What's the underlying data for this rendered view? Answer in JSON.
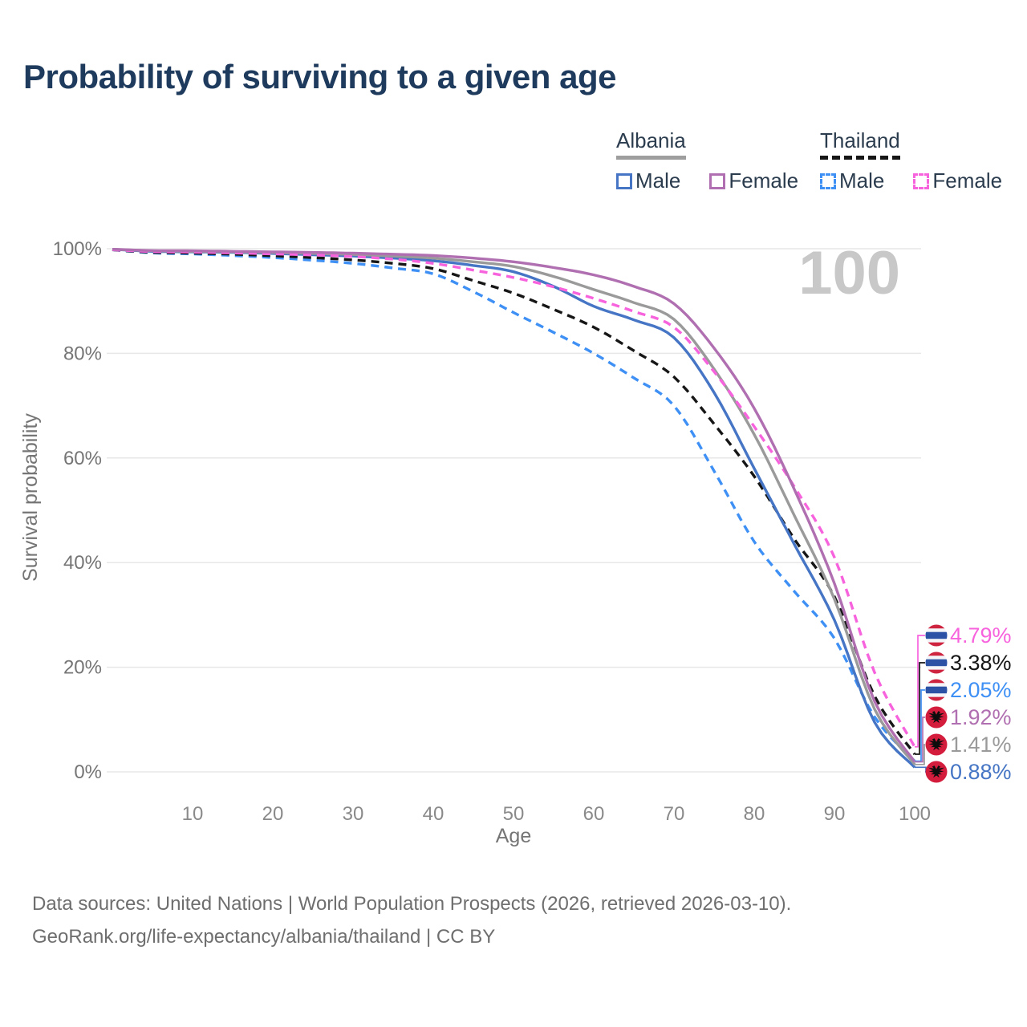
{
  "title": "Probability of surviving to a given age",
  "legend": {
    "albania": {
      "label": "Albania",
      "male": "Male",
      "female": "Female"
    },
    "thailand": {
      "label": "Thailand",
      "male": "Male",
      "female": "Female"
    }
  },
  "watermark_age": "100",
  "footer": {
    "line1": "Data sources: United Nations | World Population Prospects (2026, retrieved 2026-03-10).",
    "line2": "GeoRank.org/life-expectancy/albania/thailand | CC BY"
  },
  "colors": {
    "title_text": "#1e3a5c",
    "axis_text": "#757575",
    "tick_text": "#8a8a8a",
    "gridline": "#e7e7e7",
    "watermark": "#c8c8c8",
    "albania_male": "#4575c4",
    "albania_female": "#b06fb0",
    "albania_total": "#9a9a9a",
    "thailand_male": "#3f90f5",
    "thailand_female": "#f763dd",
    "thailand_total": "#161616",
    "flag_red_thailand": "#cf2440",
    "flag_blue_thailand": "#2b52a4",
    "flag_white_thailand": "#f4f5f8",
    "flag_red_albania": "#d41d3d",
    "flag_eagle": "#0d0d0d"
  },
  "chart_data": {
    "type": "line",
    "title": "Probability of surviving to a given age",
    "xlabel": "Age",
    "ylabel": "Survival probability",
    "xlim": [
      0,
      100
    ],
    "ylim": [
      0,
      100
    ],
    "x_ticks": [
      10,
      20,
      30,
      40,
      50,
      60,
      70,
      80,
      90,
      100
    ],
    "y_ticks": [
      0,
      20,
      40,
      60,
      80,
      100
    ],
    "y_tick_suffix": "%",
    "grid": "horizontal",
    "legend_position": "top-right",
    "hover_age_indicator": "100",
    "ages": [
      0,
      5,
      10,
      15,
      20,
      25,
      30,
      35,
      40,
      45,
      50,
      55,
      60,
      65,
      70,
      75,
      80,
      85,
      90,
      95,
      100
    ],
    "series": [
      {
        "name": "Thailand Male",
        "slug": "thailand-male",
        "country": "Thailand",
        "sex": "Male",
        "color": "#3f90f5",
        "style": "dashed",
        "flag": "thailand",
        "end_value": 2.05,
        "end_label": "2.05%",
        "values": [
          99.8,
          99.2,
          99.0,
          98.7,
          98.3,
          97.8,
          97.2,
          96.3,
          95.2,
          91.8,
          87.8,
          84.0,
          80.0,
          75.3,
          70.0,
          57.5,
          44.0,
          34.5,
          25.5,
          10.5,
          2.05
        ]
      },
      {
        "name": "Thailand",
        "slug": "thailand-total",
        "country": "Thailand",
        "sex": "Both",
        "color": "#161616",
        "style": "dashed",
        "flag": "thailand",
        "end_value": 3.38,
        "end_label": "3.38%",
        "values": [
          99.8,
          99.3,
          99.15,
          98.95,
          98.65,
          98.3,
          97.85,
          97.2,
          96.2,
          93.9,
          91.5,
          88.4,
          85.0,
          80.5,
          75.5,
          66.5,
          56.5,
          44.5,
          33.5,
          14.5,
          3.38
        ]
      },
      {
        "name": "Albania Male",
        "slug": "albania-male",
        "country": "Albania",
        "sex": "Male",
        "color": "#4575c4",
        "style": "solid",
        "flag": "albania",
        "end_value": 0.88,
        "end_label": "0.88%",
        "values": [
          99.9,
          99.5,
          99.4,
          99.3,
          99.1,
          98.85,
          98.6,
          98.2,
          97.7,
          96.8,
          95.6,
          92.8,
          89.0,
          86.4,
          83.0,
          72.5,
          58.0,
          43.5,
          29.0,
          9.5,
          0.88
        ]
      },
      {
        "name": "Albania",
        "slug": "albania-total",
        "country": "Albania",
        "sex": "Both",
        "color": "#9a9a9a",
        "style": "solid",
        "flag": "albania",
        "end_value": 1.41,
        "end_label": "1.41%",
        "values": [
          99.9,
          99.6,
          99.5,
          99.4,
          99.25,
          99.1,
          98.9,
          98.6,
          98.2,
          97.5,
          96.6,
          94.7,
          92.2,
          89.7,
          86.5,
          77.0,
          64.5,
          49.0,
          33.0,
          12.0,
          1.41
        ]
      },
      {
        "name": "Thailand Female",
        "slug": "thailand-female",
        "country": "Thailand",
        "sex": "Female",
        "color": "#f763dd",
        "style": "dashed",
        "flag": "thailand",
        "end_value": 4.79,
        "end_label": "4.79%",
        "values": [
          99.8,
          99.45,
          99.35,
          99.2,
          99.0,
          98.8,
          98.5,
          98.0,
          97.2,
          95.9,
          94.5,
          92.7,
          90.5,
          88.0,
          85.0,
          76.5,
          66.0,
          54.5,
          41.0,
          19.0,
          4.79
        ]
      },
      {
        "name": "Albania Female",
        "slug": "albania-female",
        "country": "Albania",
        "sex": "Female",
        "color": "#b06fb0",
        "style": "solid",
        "flag": "albania",
        "end_value": 1.92,
        "end_label": "1.92%",
        "values": [
          99.9,
          99.65,
          99.6,
          99.5,
          99.4,
          99.3,
          99.15,
          98.95,
          98.7,
          98.2,
          97.5,
          96.4,
          95.0,
          92.8,
          89.5,
          81.0,
          69.5,
          54.0,
          36.0,
          13.5,
          1.92
        ]
      }
    ]
  }
}
